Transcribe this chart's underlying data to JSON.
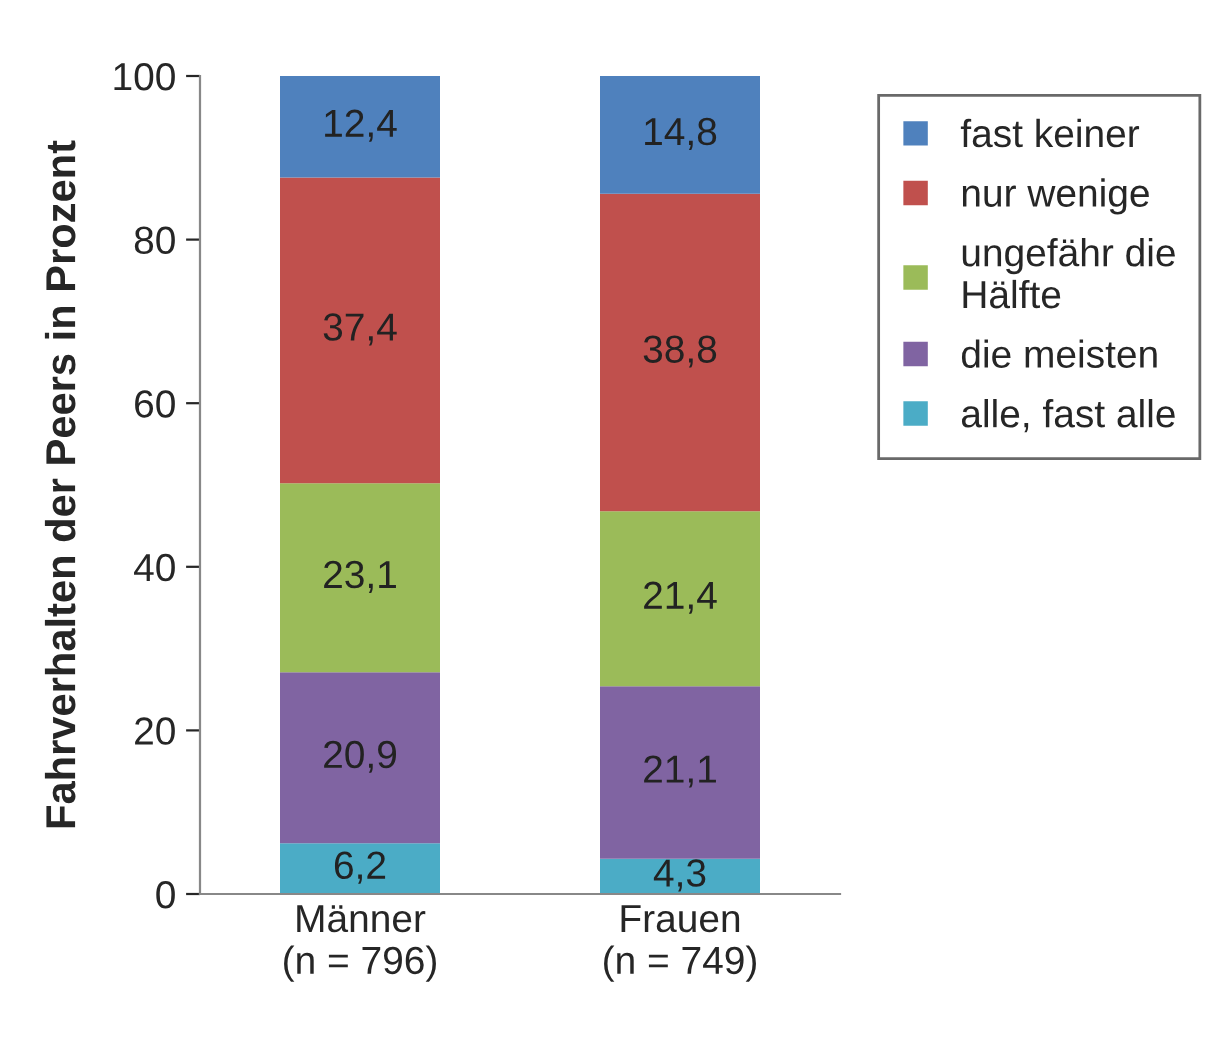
{
  "chart_data": {
    "type": "bar",
    "stacked": true,
    "ylabel": "Fahrverhalten der Peers in Prozent",
    "categories": [
      "Männer\n(n = 796)",
      "Frauen\n(n = 749)"
    ],
    "series": [
      {
        "name": "alle, fast alle",
        "color": "#4bacc6",
        "values": [
          6.2,
          4.3
        ],
        "value_labels": [
          "6,2",
          "4,3"
        ]
      },
      {
        "name": "die meisten",
        "color": "#8064a2",
        "values": [
          20.9,
          21.1
        ],
        "value_labels": [
          "20,9",
          "21,1"
        ]
      },
      {
        "name": "ungefähr die\nHälfte",
        "color": "#9bbb59",
        "values": [
          23.1,
          21.4
        ],
        "value_labels": [
          "23,1",
          "21,4"
        ]
      },
      {
        "name": "nur wenige",
        "color": "#c0504d",
        "values": [
          37.4,
          38.8
        ],
        "value_labels": [
          "37,4",
          "38,8"
        ]
      },
      {
        "name": "fast keiner",
        "color": "#4f81bd",
        "values": [
          12.4,
          14.8
        ],
        "value_labels": [
          "12,4",
          "14,8"
        ]
      }
    ],
    "ylim": [
      0,
      100
    ],
    "yticks": [
      0,
      20,
      40,
      60,
      80,
      100
    ],
    "grid": false,
    "legend": "right"
  }
}
